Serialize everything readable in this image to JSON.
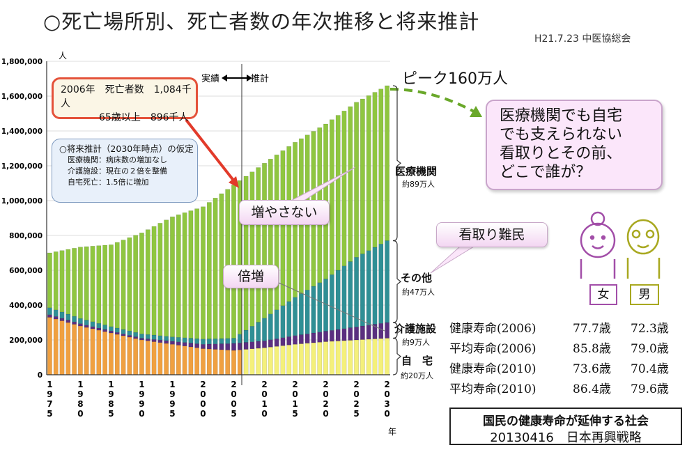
{
  "header": {
    "title": "○死亡場所別、死亡者数の年次推移と将来推計",
    "subtitle": "H21.7.23 中医協総会"
  },
  "annotations": {
    "actual_label": "実績",
    "projection_label": "推計",
    "y_unit": "人",
    "x_unit": "年",
    "box2006_line1": "2006年　死亡者数　1,084千人",
    "box2006_line2": "65歳以上　896千人",
    "assump_title": "○将来推計（2030年時点）の仮定",
    "assump_1": "医療機関：病床数の増加なし",
    "assump_2": "介護施設：現在の２倍を整備",
    "assump_3": "自宅死亡：1.5倍に増加",
    "peak": "ピーク160万人",
    "callout_med": [
      "医療機関でも自宅",
      "でも支えられない",
      "看取りとその前、",
      "どこで誰が？"
    ],
    "dont_increase": "増やさない",
    "double": "倍増",
    "refugee": "看取り難民",
    "female": "女",
    "male": "男"
  },
  "categories": [
    {
      "label": "医療機関",
      "sub": "約89万人"
    },
    {
      "label": "その他",
      "sub": "約47万人"
    },
    {
      "label": "介護施設",
      "sub": "約9万人"
    },
    {
      "label": "自　宅",
      "sub": "約20万人"
    }
  ],
  "life_expectancy": [
    {
      "label": "健康寿命(2006)",
      "female": "77.7歳",
      "male": "72.3歳"
    },
    {
      "label": "平均寿命(2006)",
      "female": "85.8歳",
      "male": "79.0歳"
    },
    {
      "label": "健康寿命(2010)",
      "female": "73.6歳",
      "male": "70.4歳"
    },
    {
      "label": "平均寿命(2010)",
      "female": "86.4歳",
      "male": "79.6歳"
    }
  ],
  "footer": {
    "line1": "国民の健康寿命が延伸する社会",
    "line2": "20130416　日本再興戦略"
  },
  "colors": {
    "home": "#f0a040",
    "home_proj": "#f4f07a",
    "care": "#5a2f80",
    "other": "#2f8f95",
    "hospital": "#8fc640",
    "arrow_red": "#e23a2a",
    "arrow_green": "#6aa82a"
  },
  "chart_data": {
    "type": "bar",
    "stacked": true,
    "ylim": [
      0,
      1800000
    ],
    "yticks": [
      "0",
      "200,000",
      "400,000",
      "600,000",
      "800,000",
      "1,000,000",
      "1,200,000",
      "1,400,000",
      "1,600,000",
      "1,800,000"
    ],
    "x_tick_labels": [
      "1975",
      "1980",
      "1985",
      "1990",
      "1995",
      "2000",
      "2005",
      "2010",
      "2015",
      "2020",
      "2025",
      "2030"
    ],
    "actual_range": [
      1975,
      2006
    ],
    "projection_range": [
      2007,
      2030
    ],
    "series": [
      {
        "name": "自宅",
        "anchors": [
          [
            1975,
            330000
          ],
          [
            1980,
            280000
          ],
          [
            1985,
            240000
          ],
          [
            1990,
            200000
          ],
          [
            1995,
            175000
          ],
          [
            2000,
            150000
          ],
          [
            2005,
            140000
          ],
          [
            2010,
            155000
          ],
          [
            2015,
            175000
          ],
          [
            2020,
            190000
          ],
          [
            2025,
            200000
          ],
          [
            2030,
            210000
          ]
        ]
      },
      {
        "name": "介護施設",
        "anchors": [
          [
            1975,
            15000
          ],
          [
            1990,
            10000
          ],
          [
            2000,
            25000
          ],
          [
            2005,
            40000
          ],
          [
            2010,
            40000
          ],
          [
            2020,
            60000
          ],
          [
            2030,
            90000
          ]
        ]
      },
      {
        "name": "その他",
        "anchors": [
          [
            1975,
            40000
          ],
          [
            1980,
            30000
          ],
          [
            1985,
            25000
          ],
          [
            1990,
            25000
          ],
          [
            1995,
            25000
          ],
          [
            2000,
            30000
          ],
          [
            2005,
            30000
          ],
          [
            2010,
            130000
          ],
          [
            2015,
            220000
          ],
          [
            2020,
            300000
          ],
          [
            2025,
            400000
          ],
          [
            2030,
            470000
          ]
        ]
      },
      {
        "name": "医療機関",
        "anchors": [
          [
            1975,
            315000
          ],
          [
            1980,
            410000
          ],
          [
            1985,
            470000
          ],
          [
            1990,
            580000
          ],
          [
            1995,
            690000
          ],
          [
            2000,
            760000
          ],
          [
            2005,
            880000
          ],
          [
            2010,
            890000
          ],
          [
            2015,
            890000
          ],
          [
            2020,
            890000
          ],
          [
            2025,
            890000
          ],
          [
            2030,
            890000
          ]
        ]
      }
    ]
  }
}
